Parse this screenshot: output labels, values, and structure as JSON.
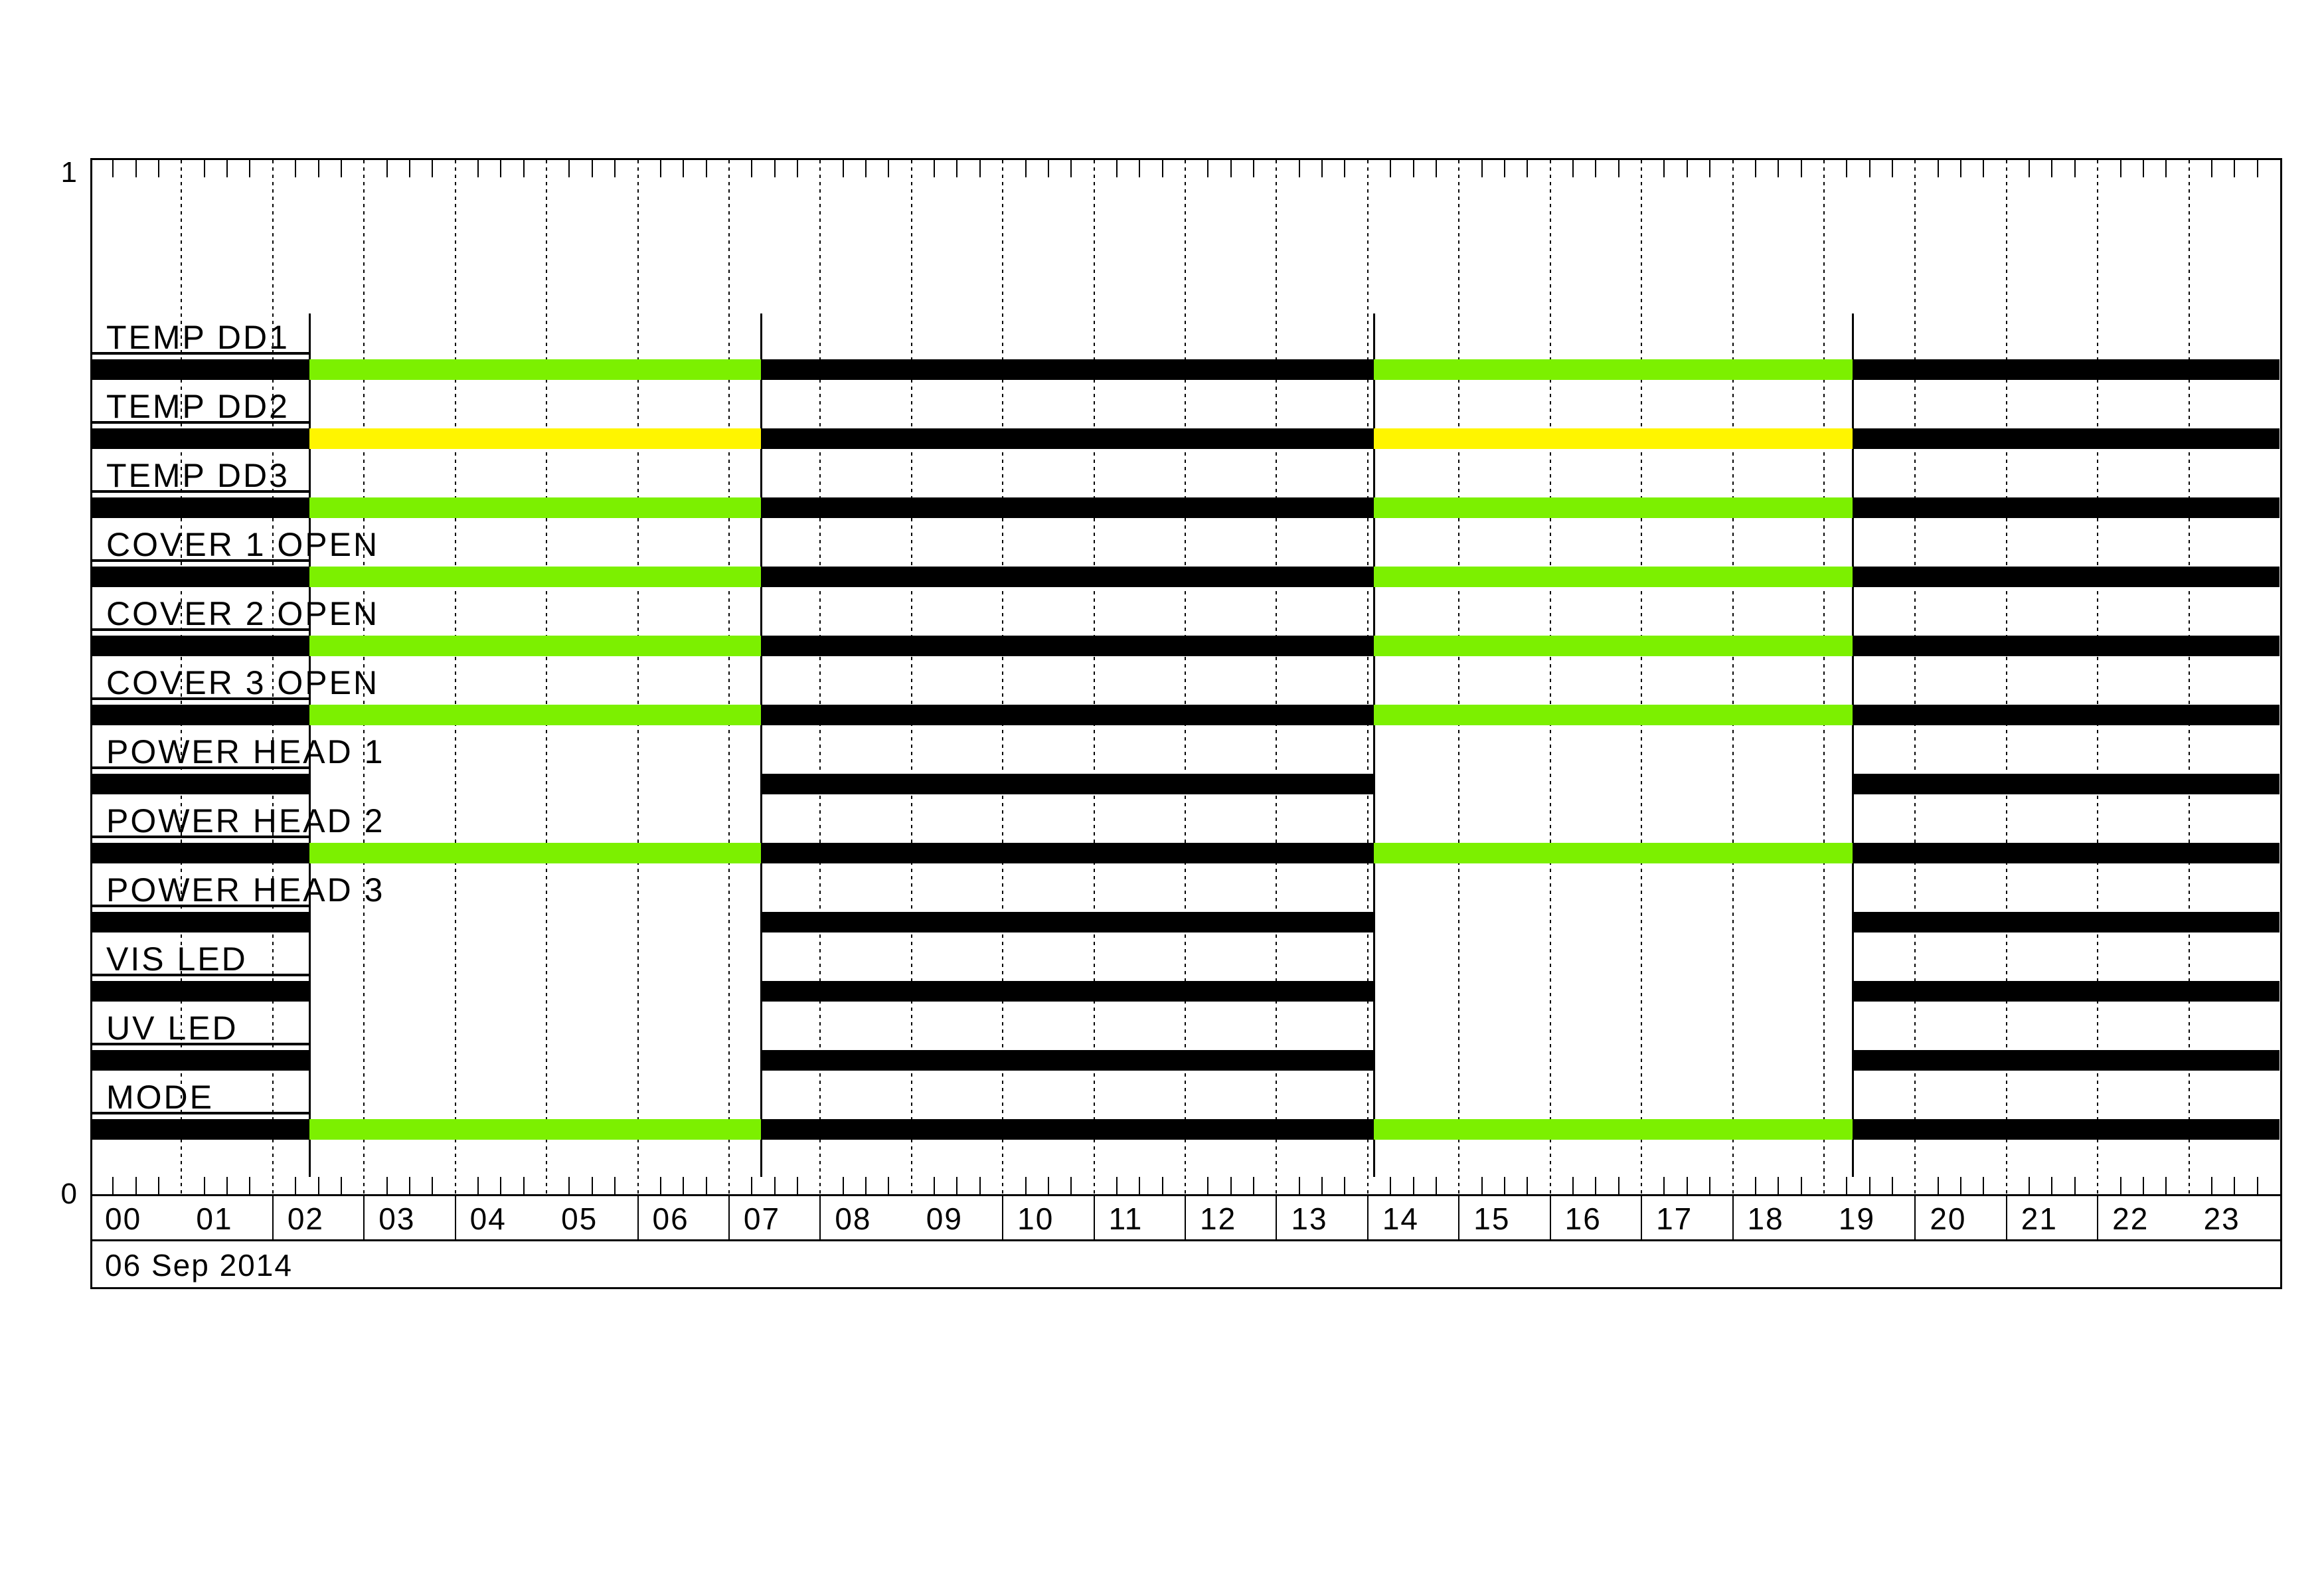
{
  "y_axis": {
    "top_label": "1",
    "bottom_label": "0"
  },
  "date_label": "06 Sep 2014",
  "axis": {
    "hours": [
      "00",
      "01",
      "02",
      "03",
      "04",
      "05",
      "06",
      "07",
      "08",
      "09",
      "10",
      "11",
      "12",
      "13",
      "14",
      "15",
      "16",
      "17",
      "18",
      "19",
      "20",
      "21",
      "22",
      "23"
    ],
    "label_row_missing_separators": [
      1,
      5,
      9,
      19,
      23
    ]
  },
  "colors": {
    "on_green": "#7CF000",
    "warn_yellow": "#FFF500",
    "off_black": "#000000",
    "background": "#FFFFFF"
  },
  "chart_data": {
    "type": "timeline",
    "title": "",
    "date": "06 Sep 2014",
    "x_axis": {
      "start": "00:00",
      "end": "24:00",
      "minor_tick_minutes": 15,
      "hour_gridlines": true
    },
    "event_times": [
      "02:24",
      "07:21",
      "14:04",
      "19:19"
    ],
    "segment_boundaries": [
      "00:00",
      "02:24",
      "07:21",
      "14:04",
      "19:19",
      "24:00"
    ],
    "rows": [
      {
        "label": "TEMP DD1",
        "states": [
          "black",
          "green",
          "black",
          "green",
          "black"
        ]
      },
      {
        "label": "TEMP DD2",
        "states": [
          "black",
          "yellow",
          "black",
          "yellow",
          "black"
        ]
      },
      {
        "label": "TEMP DD3",
        "states": [
          "black",
          "green",
          "black",
          "green",
          "black"
        ]
      },
      {
        "label": "COVER 1 OPEN",
        "states": [
          "black",
          "green",
          "black",
          "green",
          "black"
        ]
      },
      {
        "label": "COVER 2 OPEN",
        "states": [
          "black",
          "green",
          "black",
          "green",
          "black"
        ]
      },
      {
        "label": "COVER 3 OPEN",
        "states": [
          "black",
          "green",
          "black",
          "green",
          "black"
        ]
      },
      {
        "label": "POWER HEAD 1",
        "states": [
          "black",
          "none",
          "black",
          "none",
          "black"
        ]
      },
      {
        "label": "POWER HEAD 2",
        "states": [
          "black",
          "green",
          "black",
          "green",
          "black"
        ]
      },
      {
        "label": "POWER HEAD 3",
        "states": [
          "black",
          "none",
          "black",
          "none",
          "black"
        ]
      },
      {
        "label": "VIS LED",
        "states": [
          "black",
          "none",
          "black",
          "none",
          "black"
        ]
      },
      {
        "label": "UV LED",
        "states": [
          "black",
          "none",
          "black",
          "none",
          "black"
        ]
      },
      {
        "label": "MODE",
        "states": [
          "black",
          "green",
          "black",
          "green",
          "black"
        ]
      }
    ]
  }
}
